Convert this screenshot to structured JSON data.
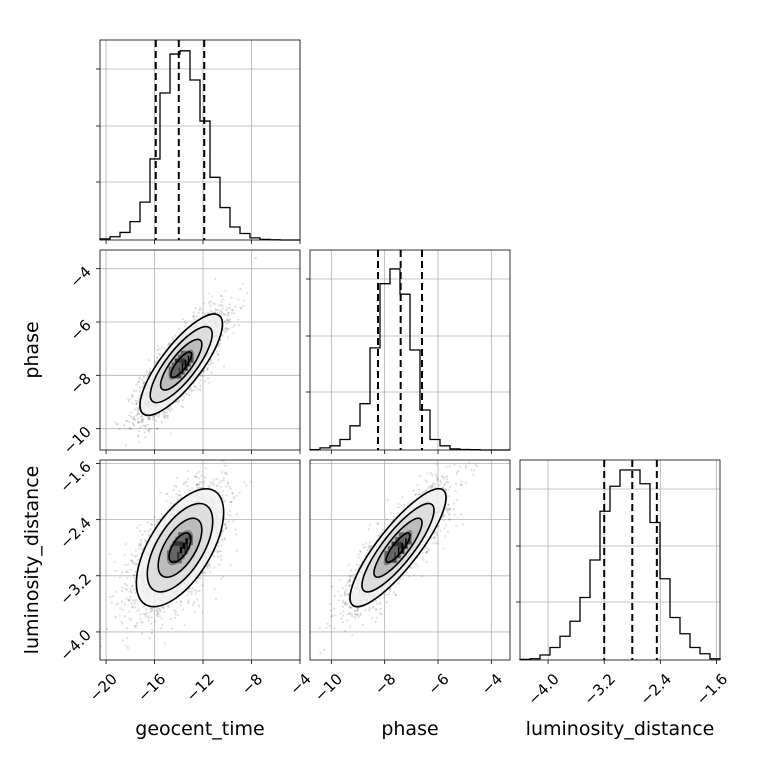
{
  "chart_data": {
    "type": "corner",
    "parameters": [
      {
        "key": "geocent_time",
        "label": "geocent_time",
        "range": [
          -20.5,
          -4
        ],
        "ticks": [
          -20,
          -16,
          -12,
          -8,
          -4
        ],
        "tick_labels": [
          "−20",
          "−16",
          "−12",
          "−8",
          "−4"
        ],
        "quantiles": [
          -15.9,
          -14.0,
          -11.9
        ],
        "histogram": {
          "bin_start": -20.5,
          "bin_width": 0.825,
          "counts": [
            1,
            3,
            7,
            17,
            35,
            75,
            136,
            172,
            175,
            148,
            110,
            58,
            30,
            12,
            6,
            2,
            0.5,
            0.2,
            0,
            0
          ],
          "ylim": [
            0,
            185
          ]
        }
      },
      {
        "key": "phase",
        "label": "phase",
        "range": [
          -10.8,
          -3.3
        ],
        "ticks": [
          -10,
          -8,
          -6,
          -4
        ],
        "tick_labels": [
          "−10",
          "−8",
          "−6",
          "−4"
        ],
        "quantiles": [
          -8.25,
          -7.4,
          -6.6
        ],
        "histogram": {
          "bin_start": -10.8,
          "bin_width": 0.375,
          "counts": [
            0.3,
            2,
            4,
            10,
            23,
            44,
            97,
            158,
            172,
            148,
            95,
            38,
            10,
            4,
            1,
            0.5,
            0.3,
            0,
            0,
            0
          ],
          "ylim": [
            0,
            190
          ]
        }
      },
      {
        "key": "luminosity_distance",
        "label": "luminosity_distance",
        "range": [
          -4.4,
          -1.55
        ],
        "ticks": [
          -4.0,
          -3.2,
          -2.4,
          -1.6
        ],
        "tick_labels": [
          "−4.0",
          "−3.2",
          "−2.4",
          "−1.6"
        ],
        "quantiles": [
          -3.2,
          -2.8,
          -2.45
        ],
        "histogram": {
          "bin_start": -4.4,
          "bin_width": 0.1425,
          "counts": [
            0.5,
            1,
            4,
            10,
            19,
            31,
            50,
            80,
            119,
            139,
            152,
            152,
            141,
            110,
            65,
            34,
            21,
            10,
            5,
            1
          ],
          "ylim": [
            0,
            160
          ]
        }
      }
    ],
    "pairs": [
      {
        "x": "geocent_time",
        "y": "phase",
        "mean": [
          -13.8,
          -7.6
        ],
        "sd": [
          1.7,
          0.95
        ],
        "corr": 0.8
      },
      {
        "x": "geocent_time",
        "y": "luminosity_distance",
        "mean": [
          -13.9,
          -2.8
        ],
        "sd": [
          1.8,
          0.42
        ],
        "corr": 0.6
      },
      {
        "x": "phase",
        "y": "luminosity_distance",
        "mean": [
          -7.5,
          -2.8
        ],
        "sd": [
          0.9,
          0.42
        ],
        "corr": 0.85
      }
    ],
    "contour_levels_sigma": [
      0.5,
      1,
      1.5,
      2
    ],
    "grid": true
  }
}
